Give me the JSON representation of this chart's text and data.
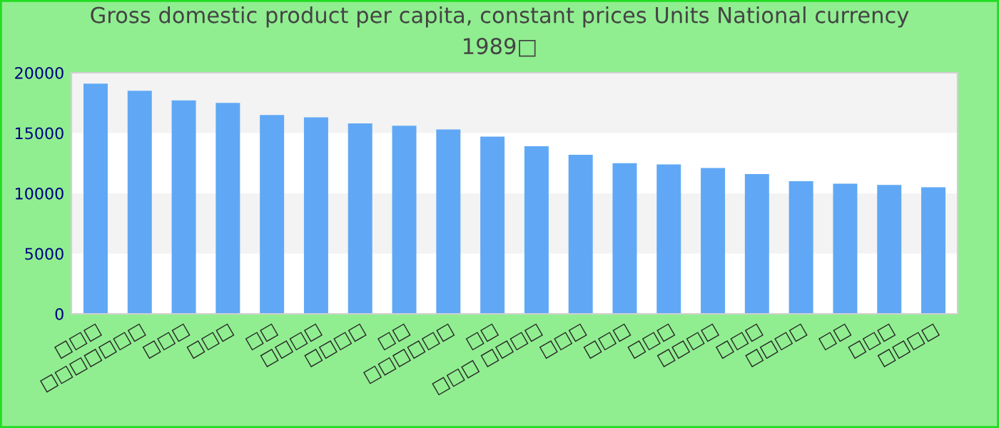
{
  "chart_data": {
    "type": "bar",
    "title": "Gross domestic product per capita, constant prices Units National currency\n1989□",
    "categories": [
      "□□□",
      "□□□□□□□",
      "□□□",
      "□□□",
      "□□",
      "□□□□",
      "□□□□",
      "□□",
      "□□□□□□",
      "□□",
      "□□□ □□□□",
      "□□□",
      "□□□",
      "□□□",
      "□□□□",
      "□□□",
      "□□□□",
      "□□",
      "□□□",
      "□□□□"
    ],
    "values": [
      19100,
      18500,
      17700,
      17500,
      16500,
      16300,
      15800,
      15600,
      15300,
      14700,
      13900,
      13200,
      12500,
      12400,
      12100,
      11600,
      11000,
      10800,
      10700,
      10500
    ],
    "color": "#60a8f5",
    "ylim": [
      0,
      20000
    ],
    "yticks": [
      0,
      5000,
      10000,
      15000,
      20000
    ],
    "bands": [
      {
        "axis": "y",
        "from": 5000,
        "to": 10000,
        "color": "#f3f3f3"
      },
      {
        "axis": "y",
        "from": 15000,
        "to": 20000,
        "color": "#f3f3f3"
      }
    ]
  }
}
